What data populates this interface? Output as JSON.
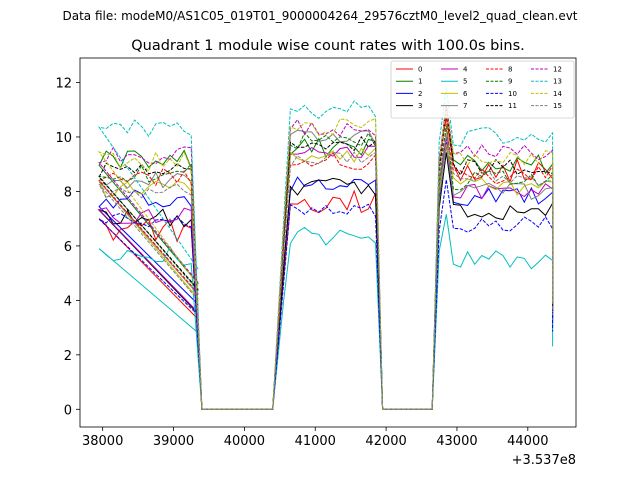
{
  "chart_data": {
    "type": "line",
    "suptitle": "Data file: modeM0/AS1C05_019T01_9000004264_29576cztM0_level2_quad_clean.evt",
    "title": "Quadrant 1 module wise count rates with 100.0s bins.",
    "xlabel": "",
    "ylabel": "",
    "x_offset_label": "+3.537e8",
    "xlim": [
      37680,
      44680
    ],
    "ylim": [
      -0.65,
      12.9
    ],
    "xticks": [
      38000,
      39000,
      40000,
      41000,
      42000,
      43000,
      44000
    ],
    "yticks": [
      0,
      2,
      4,
      6,
      8,
      10,
      12
    ],
    "legend_position": "upper right",
    "legend_columns": 4,
    "segments": [
      {
        "start": 37950,
        "end": 39300
      },
      {
        "start": 40550,
        "end": 41850
      },
      {
        "start": 42750,
        "end": 44350
      }
    ],
    "series": [
      {
        "name": "0",
        "color": "#ff0000",
        "style": "solid",
        "level": [
          6.6,
          7.6,
          8.8
        ],
        "amp": 0.45
      },
      {
        "name": "1",
        "color": "#008000",
        "style": "solid",
        "level": [
          9.2,
          9.6,
          9.0
        ],
        "amp": 0.35
      },
      {
        "name": "2",
        "color": "#0000ff",
        "style": "solid",
        "level": [
          7.7,
          8.3,
          7.8
        ],
        "amp": 0.35
      },
      {
        "name": "3",
        "color": "#000000",
        "style": "solid",
        "level": [
          7.0,
          8.2,
          7.3
        ],
        "amp": 0.35
      },
      {
        "name": "4",
        "color": "#bf00bf",
        "style": "solid",
        "level": [
          7.1,
          9.5,
          8.0
        ],
        "amp": 0.3
      },
      {
        "name": "5",
        "color": "#00bfbf",
        "style": "solid",
        "level": [
          5.6,
          6.3,
          5.5
        ],
        "amp": 0.4
      },
      {
        "name": "6",
        "color": "#bfbf00",
        "style": "solid",
        "level": [
          8.1,
          9.3,
          8.2
        ],
        "amp": 0.35
      },
      {
        "name": "7",
        "color": "#808080",
        "style": "solid",
        "level": [
          8.4,
          10.0,
          8.0
        ],
        "amp": 0.3
      },
      {
        "name": "8",
        "color": "#ff0000",
        "style": "dashed",
        "level": [
          8.5,
          9.1,
          8.6
        ],
        "amp": 0.35
      },
      {
        "name": "9",
        "color": "#008000",
        "style": "dashed",
        "level": [
          8.7,
          9.9,
          8.4
        ],
        "amp": 0.35
      },
      {
        "name": "10",
        "color": "#0000ff",
        "style": "dashed",
        "level": [
          6.9,
          7.3,
          6.8
        ],
        "amp": 0.3
      },
      {
        "name": "11",
        "color": "#000000",
        "style": "dashed",
        "level": [
          8.8,
          9.8,
          8.9
        ],
        "amp": 0.3
      },
      {
        "name": "12",
        "color": "#bf00bf",
        "style": "dashed",
        "level": [
          9.3,
          10.3,
          9.4
        ],
        "amp": 0.35
      },
      {
        "name": "13",
        "color": "#00bfbf",
        "style": "dashed",
        "level": [
          10.3,
          11.0,
          10.0
        ],
        "amp": 0.35
      },
      {
        "name": "14",
        "color": "#bfbf00",
        "style": "dashed",
        "level": [
          9.1,
          10.4,
          9.3
        ],
        "amp": 0.35
      },
      {
        "name": "15",
        "color": "#808080",
        "style": "dashed",
        "level": [
          8.0,
          9.2,
          8.5
        ],
        "amp": 0.3
      }
    ]
  }
}
